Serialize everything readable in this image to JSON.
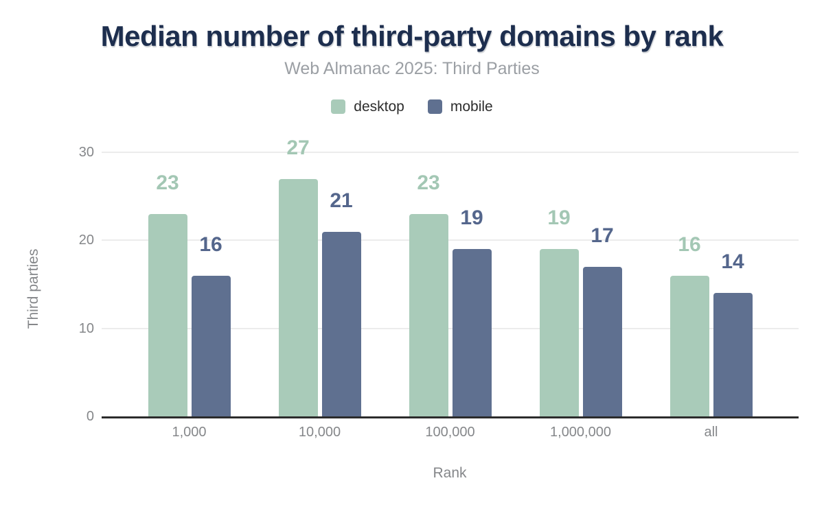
{
  "colors": {
    "title": "#1d2e4e",
    "subtitle": "#9b9fa4",
    "legend-text": "#2d2d2d",
    "axis": "#85878a",
    "grid": "#ececec",
    "baseline": "#2b2b2b",
    "desktop": "#a9cbb9",
    "mobile": "#5f7090"
  },
  "chart_data": {
    "type": "bar",
    "title": "Median number of third-party domains by rank",
    "subtitle": "Web Almanac 2025: Third Parties",
    "xlabel": "Rank",
    "ylabel": "Third parties",
    "categories": [
      "1,000",
      "10,000",
      "100,000",
      "1,000,000",
      "all"
    ],
    "series": [
      {
        "name": "desktop",
        "color": "#a9cbb9",
        "label_color": "#a3c7b4",
        "values": [
          23,
          27,
          23,
          19,
          16
        ]
      },
      {
        "name": "mobile",
        "color": "#5f7090",
        "label_color": "#54668c",
        "values": [
          16,
          21,
          19,
          17,
          14
        ]
      }
    ],
    "ylim": [
      0,
      30
    ],
    "yticks": [
      0,
      10,
      20,
      30
    ],
    "grid": true,
    "legend_position": "top",
    "value_labels": true
  }
}
